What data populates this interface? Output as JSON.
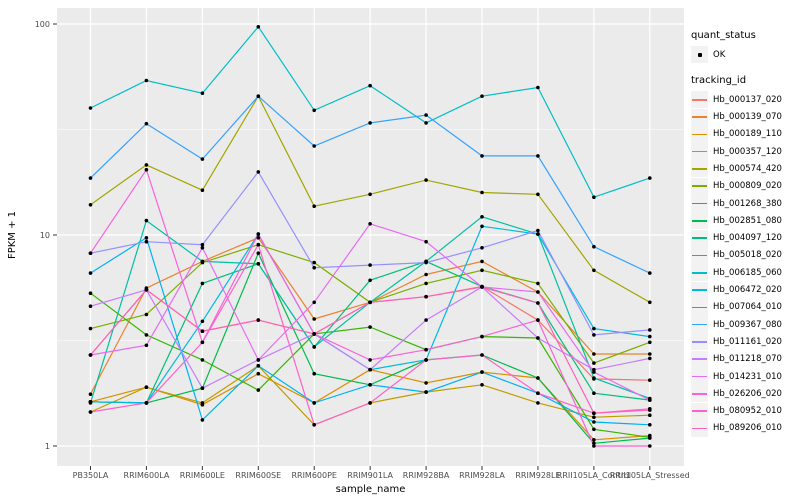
{
  "figure": {
    "x_axis_title": "sample_name",
    "y_axis_title": "FPKM + 1",
    "y_tick_labels": [
      "100",
      "10",
      "1"
    ],
    "legend": {
      "quant_status_title": "quant_status",
      "quant_status_items": [
        {
          "label": "OK",
          "marker": "black-point"
        }
      ],
      "tracking_id_title": "tracking_id"
    },
    "colors": {
      "panel_background": "#EBEBEB",
      "grid": "#FFFFFF",
      "axis_text": "#4D4D4D",
      "tick_mark": "#333333",
      "point": "#000000",
      "legend_key_background": "#F2F2F2"
    }
  },
  "chart_data": {
    "type": "line",
    "title": "",
    "xlabel": "sample_name",
    "ylabel": "FPKM + 1",
    "y_scale": "log10",
    "y_ticks": [
      1,
      10,
      100
    ],
    "y_minor_ticks": [
      3.162,
      31.62
    ],
    "ylim_log": [
      0.9,
      110
    ],
    "grid": true,
    "legend_position": "right",
    "point_marker": "black dot on every value (quant_status OK)",
    "categories": [
      "PB350LA",
      "RRIM600LA",
      "RRIM600LE",
      "RRIM600SE",
      "RRIM600PE",
      "RRIM901LA",
      "RRIM928BA",
      "RRIM928LA",
      "RRIM928LE",
      "RRII105LA_Control",
      "RRII105LA_Stressed"
    ],
    "series": [
      {
        "name": "Hb_000137_020",
        "color": "#F8766D",
        "values": [
          2.7,
          5.5,
          3.5,
          3.95,
          3.4,
          4.8,
          5.1,
          5.7,
          3.95,
          2.08,
          2.05
        ]
      },
      {
        "name": "Hb_000139_070",
        "color": "#EA8331",
        "values": [
          1.76,
          5.6,
          7.5,
          9.7,
          4.0,
          4.8,
          6.5,
          7.5,
          5.37,
          2.73,
          2.73
        ]
      },
      {
        "name": "Hb_000189_110",
        "color": "#D89000",
        "values": [
          1.62,
          1.9,
          1.57,
          2.2,
          1.6,
          2.3,
          1.99,
          2.24,
          2.1,
          1.07,
          1.12
        ]
      },
      {
        "name": "Hb_000357_120",
        "color": "#C09B00",
        "values": [
          1.45,
          1.9,
          1.6,
          2.4,
          1.26,
          1.6,
          1.8,
          1.95,
          1.6,
          1.37,
          1.4
        ]
      },
      {
        "name": "Hb_000574_420",
        "color": "#A3A500",
        "values": [
          13.9,
          21.5,
          16.3,
          45.5,
          13.7,
          15.6,
          18.2,
          15.9,
          15.6,
          6.8,
          4.8
        ]
      },
      {
        "name": "Hb_000809_020",
        "color": "#7CAE00",
        "values": [
          3.6,
          4.2,
          7.4,
          9.0,
          7.4,
          4.8,
          5.9,
          6.8,
          5.9,
          2.47,
          3.1
        ]
      },
      {
        "name": "Hb_001268_380",
        "color": "#39B600",
        "values": [
          5.3,
          3.36,
          2.56,
          1.84,
          3.4,
          3.66,
          2.86,
          3.3,
          3.25,
          1.2,
          1.1
        ]
      },
      {
        "name": "Hb_002851_080",
        "color": "#00BB4E",
        "values": [
          1.62,
          1.6,
          1.88,
          8.2,
          2.2,
          1.95,
          2.56,
          2.7,
          2.1,
          1.03,
          1.09
        ]
      },
      {
        "name": "Hb_004097_120",
        "color": "#00BF7D",
        "values": [
          1.62,
          1.6,
          5.9,
          7.3,
          2.95,
          6.1,
          7.5,
          5.7,
          4.76,
          1.78,
          1.65
        ]
      },
      {
        "name": "Hb_005018_020",
        "color": "#00C1A3",
        "values": [
          1.6,
          11.7,
          7.5,
          7.3,
          2.95,
          4.8,
          7.5,
          12.2,
          10.1,
          2.1,
          1.68
        ]
      },
      {
        "name": "Hb_006185_060",
        "color": "#00BFC4",
        "values": [
          40,
          54,
          47,
          97,
          39,
          51,
          34,
          45.5,
          50,
          15.1,
          18.6
        ]
      },
      {
        "name": "Hb_006472_020",
        "color": "#00BAE0",
        "values": [
          1.62,
          1.6,
          3.9,
          10.1,
          3.4,
          2.3,
          2.56,
          11.0,
          10.1,
          3.6,
          3.3
        ]
      },
      {
        "name": "Hb_007064_010",
        "color": "#00B0F6",
        "values": [
          6.6,
          9.7,
          1.33,
          2.4,
          1.6,
          1.95,
          1.8,
          2.24,
          1.78,
          1.3,
          1.26
        ]
      },
      {
        "name": "Hb_009367_080",
        "color": "#35A2FF",
        "values": [
          18.6,
          33.7,
          22.9,
          45.5,
          26.4,
          34,
          37,
          23.7,
          23.7,
          8.8,
          6.6
        ]
      },
      {
        "name": "Hb_011161_020",
        "color": "#9590FF",
        "values": [
          8.2,
          9.3,
          9.0,
          19.9,
          7.0,
          7.2,
          7.4,
          8.7,
          10.5,
          3.36,
          3.55
        ]
      },
      {
        "name": "Hb_011218_070",
        "color": "#C77CFF",
        "values": [
          4.6,
          5.5,
          1.88,
          2.56,
          3.4,
          2.3,
          3.95,
          5.67,
          3.25,
          2.3,
          2.6
        ]
      },
      {
        "name": "Hb_014231_010",
        "color": "#E76BF3",
        "values": [
          2.7,
          3.0,
          8.7,
          2.56,
          4.8,
          11.3,
          9.3,
          5.67,
          5.37,
          2.24,
          1.65
        ]
      },
      {
        "name": "Hb_026206_020",
        "color": "#FA62DB",
        "values": [
          8.2,
          20.4,
          3.1,
          10.1,
          3.4,
          2.56,
          2.86,
          3.3,
          3.95,
          1.0,
          1.0
        ]
      },
      {
        "name": "Hb_080952_010",
        "color": "#FF61CC",
        "values": [
          1.45,
          1.6,
          3.1,
          9.0,
          1.26,
          1.6,
          2.56,
          2.7,
          1.78,
          1.43,
          1.48
        ]
      },
      {
        "name": "Hb_089206_010",
        "color": "#FF62BC",
        "values": [
          2.7,
          5.5,
          3.5,
          3.95,
          3.4,
          4.8,
          5.1,
          5.67,
          4.76,
          1.43,
          1.5
        ]
      }
    ]
  }
}
